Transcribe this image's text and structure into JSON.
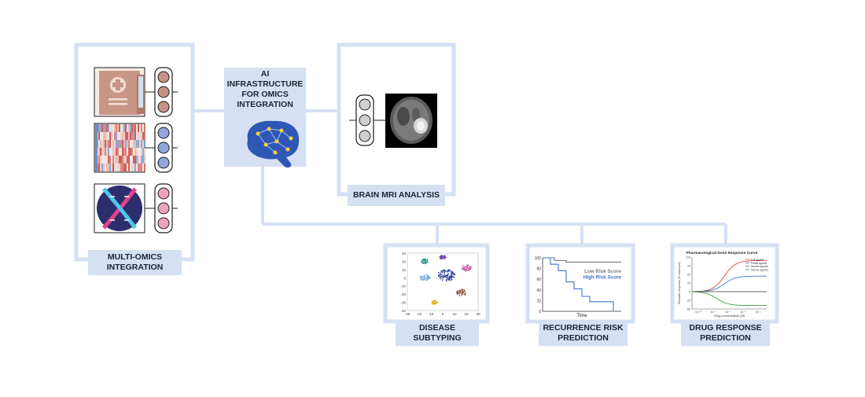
{
  "hub": {
    "title_lines": [
      "AI",
      "INFRASTRUCTURE",
      "FOR OMICS",
      "INTEGRATION"
    ]
  },
  "multi_omics": {
    "label_lines": [
      "MULTI-OMICS",
      "INTEGRATION"
    ]
  },
  "brain_mri": {
    "label": "BRAIN MRI ANALYSIS"
  },
  "disease_subtyping": {
    "label_lines": [
      "DISEASE",
      "SUBTYPING"
    ],
    "chart_data": {
      "type": "scatter",
      "title": "",
      "xlabel": "",
      "ylabel": "",
      "x_ticks": [
        "-30",
        "-20",
        "-10",
        "0",
        "10",
        "20",
        "30"
      ],
      "y_ticks": [
        "30",
        "20",
        "10",
        "0",
        "-10",
        "-20",
        "-30",
        "-40"
      ],
      "xlim": [
        -30,
        30
      ],
      "ylim": [
        -40,
        30
      ],
      "clusters": [
        {
          "color": "#2f9a86",
          "cx": -15,
          "cy": 20,
          "spread": 3
        },
        {
          "color": "#7d46a8",
          "cx": 0,
          "cy": 25,
          "spread": 2.5
        },
        {
          "color": "#c84f9a",
          "cx": 20,
          "cy": 12,
          "spread": 4
        },
        {
          "color": "#74a7dd",
          "cx": -15,
          "cy": 0,
          "spread": 4
        },
        {
          "color": "#34479c",
          "cx": 3,
          "cy": 3,
          "spread": 7
        },
        {
          "color": "#8a4a3a",
          "cx": 16,
          "cy": -18,
          "spread": 4
        },
        {
          "color": "#e6b321",
          "cx": -7,
          "cy": -30,
          "spread": 2.5
        }
      ]
    }
  },
  "recurrence": {
    "label_lines": [
      "RECURRENCE RISK",
      "PREDICTION"
    ],
    "chart_data": {
      "type": "line",
      "title": "",
      "xlabel": "Time",
      "ylabel": "",
      "y_ticks": [
        "100",
        "80",
        "60",
        "40",
        "20",
        "0"
      ],
      "ylim": [
        0,
        100
      ],
      "series": [
        {
          "name": "Low Risk Score",
          "color": "#7a7a7a",
          "steps": [
            [
              0,
              100
            ],
            [
              1.5,
              100
            ],
            [
              1.5,
              95
            ],
            [
              3,
              95
            ],
            [
              3,
              92
            ],
            [
              10,
              92
            ]
          ]
        },
        {
          "name": "High Risk Score",
          "color": "#3f72c4",
          "steps": [
            [
              0,
              100
            ],
            [
              1,
              100
            ],
            [
              1,
              88
            ],
            [
              2,
              88
            ],
            [
              2,
              76
            ],
            [
              3,
              76
            ],
            [
              3,
              55
            ],
            [
              4,
              55
            ],
            [
              4,
              42
            ],
            [
              5,
              42
            ],
            [
              5,
              28
            ],
            [
              6,
              28
            ],
            [
              6,
              18
            ],
            [
              9,
              18
            ],
            [
              9,
              0
            ]
          ]
        }
      ]
    }
  },
  "drug_response": {
    "label_lines": [
      "DRUG RESPONSE",
      "PREDICTION"
    ],
    "chart_data": {
      "type": "line",
      "title": "Pharmacological Dose Response Curve",
      "xlabel": "Drug concentration (M)",
      "ylabel": "Receptor response (% maximum)",
      "y_ticks": [
        "100",
        "75",
        "50",
        "25",
        "0",
        "-25",
        "-50"
      ],
      "x_ticks": [
        "10⁻¹⁰",
        "10⁻⁸",
        "10⁻⁶",
        "10⁻⁴",
        "10⁻²"
      ],
      "ylim": [
        -50,
        100
      ],
      "series": [
        {
          "name": "Full agonist",
          "color": "#d9453b",
          "top": 90,
          "bottom": 0,
          "ec50": 2.6
        },
        {
          "name": "Partial agonist",
          "color": "#3f72c4",
          "top": 45,
          "bottom": 0,
          "ec50": 2.6
        },
        {
          "name": "Neutral agonist",
          "color": "#6a6a6a",
          "top": 0,
          "bottom": 0,
          "ec50": 2.6
        },
        {
          "name": "Inverse agonist",
          "color": "#3aa04a",
          "top": -40,
          "bottom": 0,
          "ec50": 2.0
        }
      ]
    }
  },
  "colors": {
    "frame": "#d5e0f3",
    "label_bg": "#d5e0f3",
    "brain": "#2f57b5",
    "node_brown": "#c49282",
    "node_blue": "#8fa8d8",
    "node_pink": "#f1a3bb"
  }
}
